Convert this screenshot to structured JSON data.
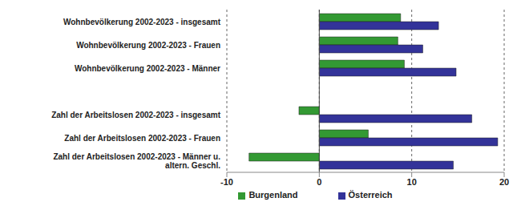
{
  "chart_data": {
    "type": "bar",
    "orientation": "horizontal",
    "categories": [
      "Wohnbevölkerung 2002-2023 - insgesamt",
      "Wohnbevölkerung 2002-2023 - Frauen",
      "Wohnbevölkerung 2002-2023 - Männer",
      null,
      "Zahl der Arbeitslosen 2002-2023 - insgesamt",
      "Zahl der Arbeitslosen 2002-2023 - Frauen",
      "Zahl der Arbeitslosen 2002-2023 - Männer u. altern. Geschl."
    ],
    "series": [
      {
        "name": "Burgenland",
        "color": "#339933",
        "values": [
          8.8,
          8.5,
          9.2,
          null,
          -2.2,
          5.3,
          -7.6
        ]
      },
      {
        "name": "Österreich",
        "color": "#333399",
        "values": [
          12.9,
          11.2,
          14.8,
          null,
          16.5,
          19.3,
          14.5
        ]
      }
    ],
    "xlim": [
      -10,
      20
    ],
    "xticks": [
      -10,
      0,
      10,
      20
    ],
    "grid": true,
    "legend": "bottom"
  }
}
